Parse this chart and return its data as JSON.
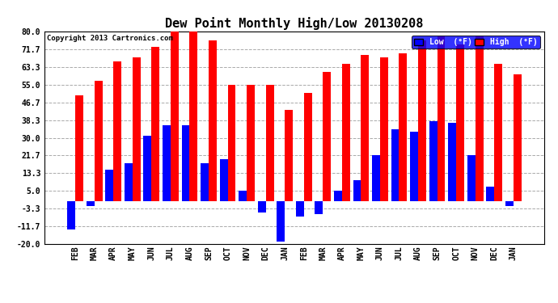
{
  "title": "Dew Point Monthly High/Low 20130208",
  "copyright": "Copyright 2013 Cartronics.com",
  "months": [
    "FEB",
    "MAR",
    "APR",
    "MAY",
    "JUN",
    "JUL",
    "AUG",
    "SEP",
    "OCT",
    "NOV",
    "DEC",
    "JAN",
    "FEB",
    "MAR",
    "APR",
    "MAY",
    "JUN",
    "JUL",
    "AUG",
    "SEP",
    "OCT",
    "NOV",
    "DEC",
    "JAN"
  ],
  "high_values": [
    50.0,
    57.0,
    66.0,
    68.0,
    73.0,
    80.0,
    80.0,
    76.0,
    55.0,
    55.0,
    55.0,
    43.0,
    51.0,
    61.0,
    65.0,
    69.0,
    68.0,
    70.0,
    76.0,
    78.0,
    74.0,
    78.0,
    65.0,
    60.0
  ],
  "low_values": [
    -13.0,
    -2.0,
    15.0,
    18.0,
    31.0,
    36.0,
    36.0,
    18.0,
    20.0,
    5.0,
    -5.0,
    -19.0,
    -7.0,
    -6.0,
    5.0,
    10.0,
    22.0,
    34.0,
    33.0,
    38.0,
    37.0,
    22.0,
    7.0,
    -2.0
  ],
  "high_color": "#FF0000",
  "low_color": "#0000FF",
  "bg_color": "#FFFFFF",
  "grid_color": "#AAAAAA",
  "ylim": [
    -20.0,
    80.0
  ],
  "yticks": [
    -20.0,
    -11.7,
    -3.3,
    5.0,
    13.3,
    21.7,
    30.0,
    38.3,
    46.7,
    55.0,
    63.3,
    71.7,
    80.0
  ],
  "bar_width": 0.42,
  "title_fontsize": 11,
  "tick_fontsize": 7,
  "legend_low_label": "Low  (°F)",
  "legend_high_label": "High  (°F)"
}
